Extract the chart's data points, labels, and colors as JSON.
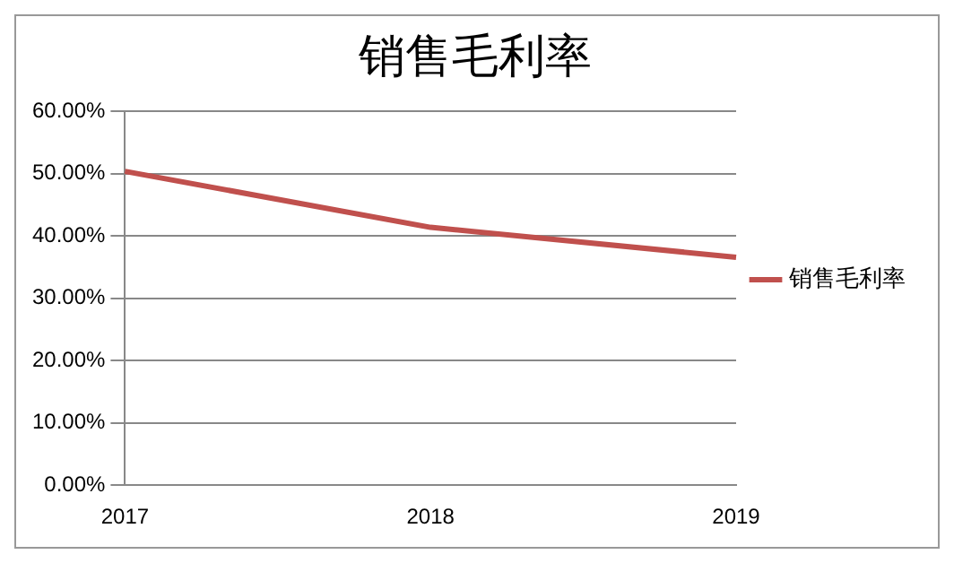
{
  "chart_data": {
    "type": "line",
    "title": "销售毛利率",
    "categories": [
      "2017",
      "2018",
      "2019"
    ],
    "series": [
      {
        "name": "销售毛利率",
        "color": "#c0504d",
        "values": [
          50.4,
          41.4,
          36.6
        ]
      }
    ],
    "ylim": [
      0,
      60
    ],
    "yticks": [
      {
        "value": 0,
        "label": "0.00%"
      },
      {
        "value": 10,
        "label": "10.00%"
      },
      {
        "value": 20,
        "label": "20.00%"
      },
      {
        "value": 30,
        "label": "30.00%"
      },
      {
        "value": 40,
        "label": "40.00%"
      },
      {
        "value": 50,
        "label": "50.00%"
      },
      {
        "value": 60,
        "label": "60.00%"
      }
    ],
    "grid": "y",
    "legend": "right",
    "marker": "none",
    "line_style": "solid"
  }
}
